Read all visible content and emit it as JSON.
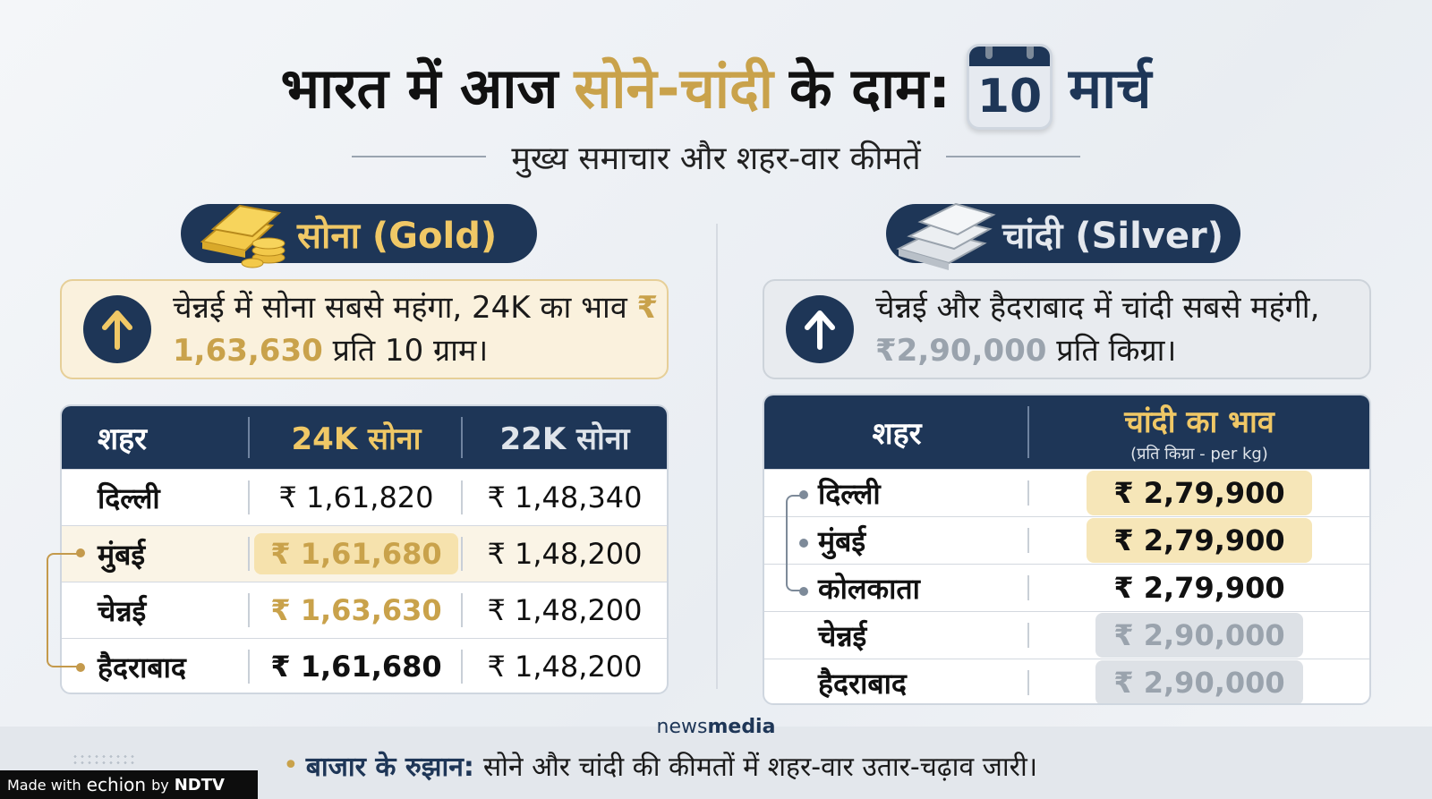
{
  "title": {
    "part1": "भारत में आज",
    "part2": "सोने-चांदी",
    "part3": "के दाम:",
    "day": "10",
    "month": "मार्च"
  },
  "subtitle": "मुख्य समाचार और शहर-वार कीमतें",
  "gold": {
    "pill_label": "सोना (Gold)",
    "note_before": "चेन्नई में सोना सबसे महंगा, 24K का भाव",
    "note_price": "₹ 1,63,630",
    "note_after": "प्रति 10 ग्राम।",
    "headers": [
      "शहर",
      "24K सोना",
      "22K सोना"
    ],
    "rows": [
      {
        "city": "दिल्ली",
        "k24": "₹ 1,61,820",
        "k22": "₹ 1,48,340"
      },
      {
        "city": "मुंबई",
        "k24": "₹ 1,61,680",
        "k22": "₹ 1,48,200"
      },
      {
        "city": "चेन्नई",
        "k24": "₹ 1,63,630",
        "k22": "₹ 1,48,200"
      },
      {
        "city": "हैदराबाद",
        "k24": "₹ 1,61,680",
        "k22": "₹ 1,48,200"
      }
    ]
  },
  "silver": {
    "pill_label": "चांदी (Silver)",
    "note_before": "चेन्नई और हैदराबाद में चांदी सबसे महंगी,",
    "note_price": "₹2,90,000",
    "note_after": "प्रति किग्रा।",
    "header_city": "शहर",
    "header_price": "चांदी का भाव",
    "header_unit": "(प्रति किग्रा - per kg)",
    "rows": [
      {
        "city": "दिल्ली",
        "price": "₹ 2,79,900"
      },
      {
        "city": "मुंबई",
        "price": "₹ 2,79,900"
      },
      {
        "city": "कोलकाता",
        "price": "₹ 2,79,900"
      },
      {
        "city": "चेन्नई",
        "price": "₹ 2,90,000"
      },
      {
        "city": "हैदराबाद",
        "price": "₹ 2,90,000"
      }
    ]
  },
  "brand": {
    "news": "news",
    "media": "media"
  },
  "footer": {
    "label": "बाजार के रुझान:",
    "text": "सोने और चांदी की कीमतों में शहर-वार उतार-चढ़ाव जारी।"
  },
  "made_with": {
    "prefix": "Made with",
    "echion": "echion",
    "by": "by",
    "ndtv": "NDTV"
  },
  "colors": {
    "navy": "#1e3657",
    "gold": "#c9a24b",
    "silver_grey": "#9aa3ad"
  }
}
